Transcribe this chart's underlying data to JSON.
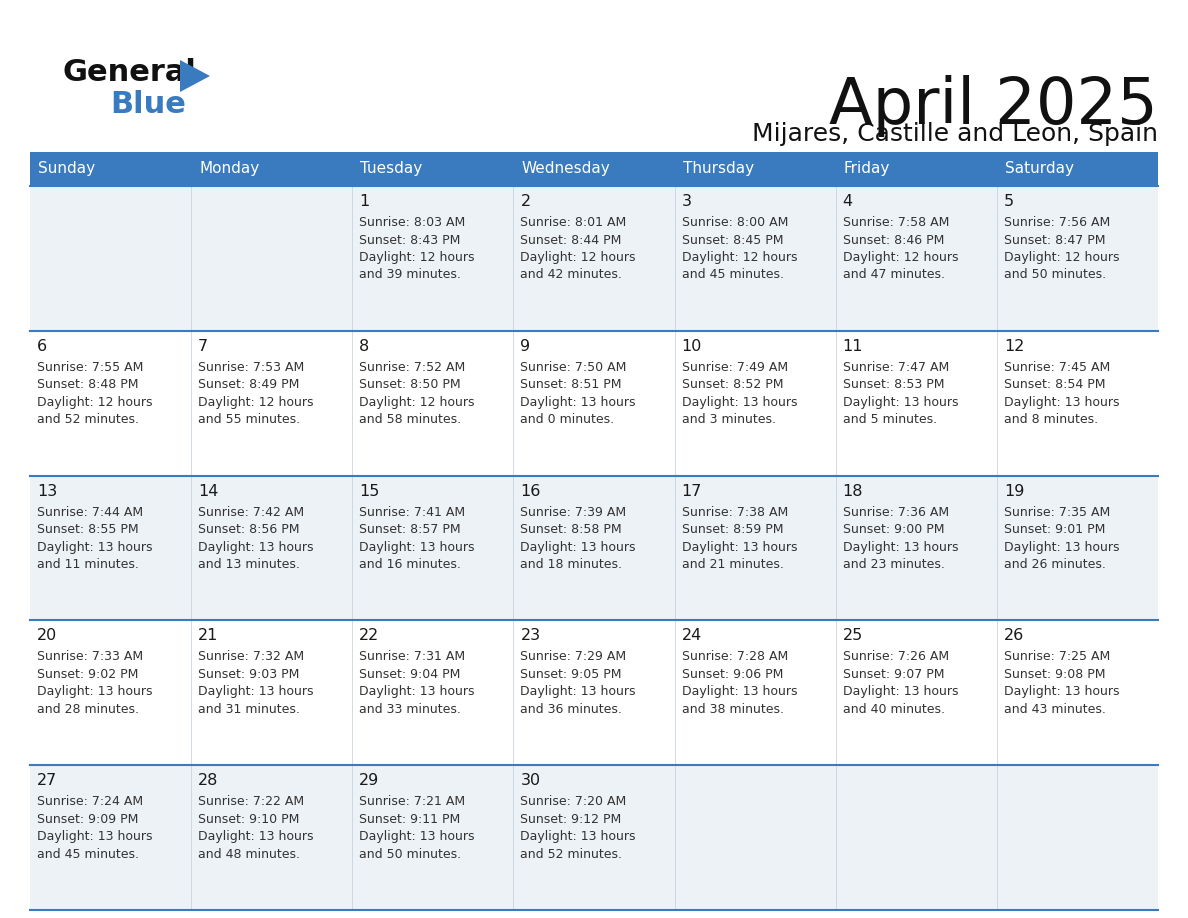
{
  "title": "April 2025",
  "subtitle": "Mijares, Castille and Leon, Spain",
  "header_bg": "#3a7bbf",
  "header_text_color": "#ffffff",
  "cell_bg_light": "#edf2f7",
  "cell_bg_white": "#ffffff",
  "separator_color": "#3a7bbf",
  "text_color_dark": "#1a1a1a",
  "text_color_cell": "#333333",
  "days_of_week": [
    "Sunday",
    "Monday",
    "Tuesday",
    "Wednesday",
    "Thursday",
    "Friday",
    "Saturday"
  ],
  "calendar_data": [
    [
      {
        "day": null,
        "sunrise": null,
        "sunset": null,
        "daylight_line1": null,
        "daylight_line2": null
      },
      {
        "day": null,
        "sunrise": null,
        "sunset": null,
        "daylight_line1": null,
        "daylight_line2": null
      },
      {
        "day": 1,
        "sunrise": "8:03 AM",
        "sunset": "8:43 PM",
        "daylight_line1": "Daylight: 12 hours",
        "daylight_line2": "and 39 minutes."
      },
      {
        "day": 2,
        "sunrise": "8:01 AM",
        "sunset": "8:44 PM",
        "daylight_line1": "Daylight: 12 hours",
        "daylight_line2": "and 42 minutes."
      },
      {
        "day": 3,
        "sunrise": "8:00 AM",
        "sunset": "8:45 PM",
        "daylight_line1": "Daylight: 12 hours",
        "daylight_line2": "and 45 minutes."
      },
      {
        "day": 4,
        "sunrise": "7:58 AM",
        "sunset": "8:46 PM",
        "daylight_line1": "Daylight: 12 hours",
        "daylight_line2": "and 47 minutes."
      },
      {
        "day": 5,
        "sunrise": "7:56 AM",
        "sunset": "8:47 PM",
        "daylight_line1": "Daylight: 12 hours",
        "daylight_line2": "and 50 minutes."
      }
    ],
    [
      {
        "day": 6,
        "sunrise": "7:55 AM",
        "sunset": "8:48 PM",
        "daylight_line1": "Daylight: 12 hours",
        "daylight_line2": "and 52 minutes."
      },
      {
        "day": 7,
        "sunrise": "7:53 AM",
        "sunset": "8:49 PM",
        "daylight_line1": "Daylight: 12 hours",
        "daylight_line2": "and 55 minutes."
      },
      {
        "day": 8,
        "sunrise": "7:52 AM",
        "sunset": "8:50 PM",
        "daylight_line1": "Daylight: 12 hours",
        "daylight_line2": "and 58 minutes."
      },
      {
        "day": 9,
        "sunrise": "7:50 AM",
        "sunset": "8:51 PM",
        "daylight_line1": "Daylight: 13 hours",
        "daylight_line2": "and 0 minutes."
      },
      {
        "day": 10,
        "sunrise": "7:49 AM",
        "sunset": "8:52 PM",
        "daylight_line1": "Daylight: 13 hours",
        "daylight_line2": "and 3 minutes."
      },
      {
        "day": 11,
        "sunrise": "7:47 AM",
        "sunset": "8:53 PM",
        "daylight_line1": "Daylight: 13 hours",
        "daylight_line2": "and 5 minutes."
      },
      {
        "day": 12,
        "sunrise": "7:45 AM",
        "sunset": "8:54 PM",
        "daylight_line1": "Daylight: 13 hours",
        "daylight_line2": "and 8 minutes."
      }
    ],
    [
      {
        "day": 13,
        "sunrise": "7:44 AM",
        "sunset": "8:55 PM",
        "daylight_line1": "Daylight: 13 hours",
        "daylight_line2": "and 11 minutes."
      },
      {
        "day": 14,
        "sunrise": "7:42 AM",
        "sunset": "8:56 PM",
        "daylight_line1": "Daylight: 13 hours",
        "daylight_line2": "and 13 minutes."
      },
      {
        "day": 15,
        "sunrise": "7:41 AM",
        "sunset": "8:57 PM",
        "daylight_line1": "Daylight: 13 hours",
        "daylight_line2": "and 16 minutes."
      },
      {
        "day": 16,
        "sunrise": "7:39 AM",
        "sunset": "8:58 PM",
        "daylight_line1": "Daylight: 13 hours",
        "daylight_line2": "and 18 minutes."
      },
      {
        "day": 17,
        "sunrise": "7:38 AM",
        "sunset": "8:59 PM",
        "daylight_line1": "Daylight: 13 hours",
        "daylight_line2": "and 21 minutes."
      },
      {
        "day": 18,
        "sunrise": "7:36 AM",
        "sunset": "9:00 PM",
        "daylight_line1": "Daylight: 13 hours",
        "daylight_line2": "and 23 minutes."
      },
      {
        "day": 19,
        "sunrise": "7:35 AM",
        "sunset": "9:01 PM",
        "daylight_line1": "Daylight: 13 hours",
        "daylight_line2": "and 26 minutes."
      }
    ],
    [
      {
        "day": 20,
        "sunrise": "7:33 AM",
        "sunset": "9:02 PM",
        "daylight_line1": "Daylight: 13 hours",
        "daylight_line2": "and 28 minutes."
      },
      {
        "day": 21,
        "sunrise": "7:32 AM",
        "sunset": "9:03 PM",
        "daylight_line1": "Daylight: 13 hours",
        "daylight_line2": "and 31 minutes."
      },
      {
        "day": 22,
        "sunrise": "7:31 AM",
        "sunset": "9:04 PM",
        "daylight_line1": "Daylight: 13 hours",
        "daylight_line2": "and 33 minutes."
      },
      {
        "day": 23,
        "sunrise": "7:29 AM",
        "sunset": "9:05 PM",
        "daylight_line1": "Daylight: 13 hours",
        "daylight_line2": "and 36 minutes."
      },
      {
        "day": 24,
        "sunrise": "7:28 AM",
        "sunset": "9:06 PM",
        "daylight_line1": "Daylight: 13 hours",
        "daylight_line2": "and 38 minutes."
      },
      {
        "day": 25,
        "sunrise": "7:26 AM",
        "sunset": "9:07 PM",
        "daylight_line1": "Daylight: 13 hours",
        "daylight_line2": "and 40 minutes."
      },
      {
        "day": 26,
        "sunrise": "7:25 AM",
        "sunset": "9:08 PM",
        "daylight_line1": "Daylight: 13 hours",
        "daylight_line2": "and 43 minutes."
      }
    ],
    [
      {
        "day": 27,
        "sunrise": "7:24 AM",
        "sunset": "9:09 PM",
        "daylight_line1": "Daylight: 13 hours",
        "daylight_line2": "and 45 minutes."
      },
      {
        "day": 28,
        "sunrise": "7:22 AM",
        "sunset": "9:10 PM",
        "daylight_line1": "Daylight: 13 hours",
        "daylight_line2": "and 48 minutes."
      },
      {
        "day": 29,
        "sunrise": "7:21 AM",
        "sunset": "9:11 PM",
        "daylight_line1": "Daylight: 13 hours",
        "daylight_line2": "and 50 minutes."
      },
      {
        "day": 30,
        "sunrise": "7:20 AM",
        "sunset": "9:12 PM",
        "daylight_line1": "Daylight: 13 hours",
        "daylight_line2": "and 52 minutes."
      },
      {
        "day": null,
        "sunrise": null,
        "sunset": null,
        "daylight_line1": null,
        "daylight_line2": null
      },
      {
        "day": null,
        "sunrise": null,
        "sunset": null,
        "daylight_line1": null,
        "daylight_line2": null
      },
      {
        "day": null,
        "sunrise": null,
        "sunset": null,
        "daylight_line1": null,
        "daylight_line2": null
      }
    ]
  ]
}
